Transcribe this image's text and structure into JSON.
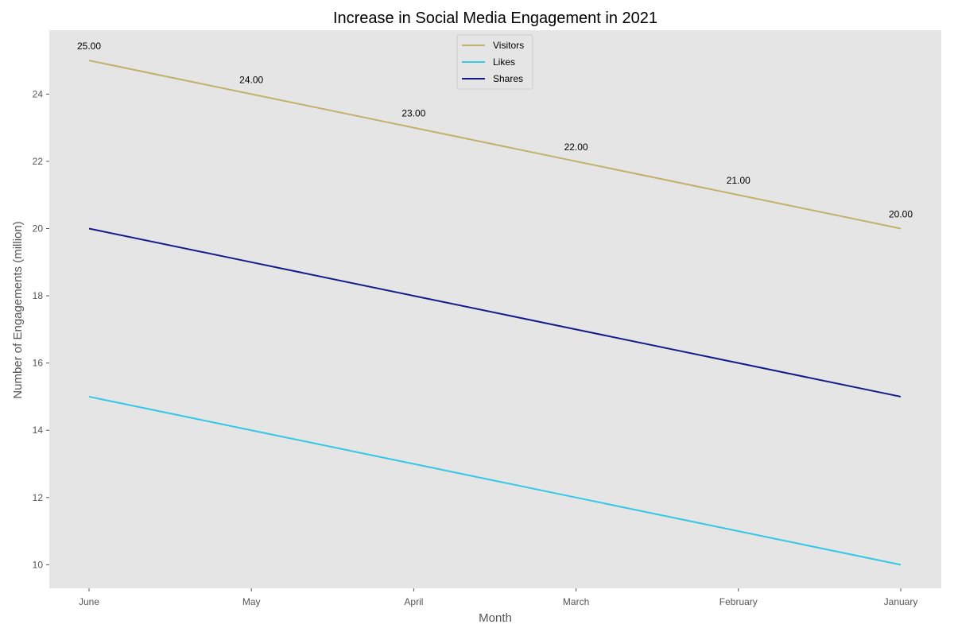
{
  "chart_data": {
    "type": "line",
    "title": "Increase in Social Media Engagement in 2021",
    "xlabel": "Month",
    "ylabel": "Number of Engagements (million)",
    "categories": [
      "June",
      "May",
      "April",
      "March",
      "February",
      "January"
    ],
    "ylim": [
      9.3,
      25.9
    ],
    "yticks": [
      10,
      12,
      14,
      16,
      18,
      20,
      22,
      24
    ],
    "grid": false,
    "legend_position": "top-center",
    "series": [
      {
        "name": "Visitors",
        "values": [
          25,
          24,
          23,
          22,
          21,
          20
        ],
        "color": "#c2b16a",
        "labeled": true
      },
      {
        "name": "Likes",
        "values": [
          15,
          14,
          13,
          12,
          11,
          10
        ],
        "color": "#33c7e8",
        "labeled": false
      },
      {
        "name": "Shares",
        "values": [
          20,
          19,
          18,
          17,
          16,
          15
        ],
        "color": "#141a8a",
        "labeled": false
      }
    ],
    "data_labels": [
      "25.00",
      "24.00",
      "23.00",
      "22.00",
      "21.00",
      "20.00"
    ],
    "background_color": "#e5e5e5"
  }
}
